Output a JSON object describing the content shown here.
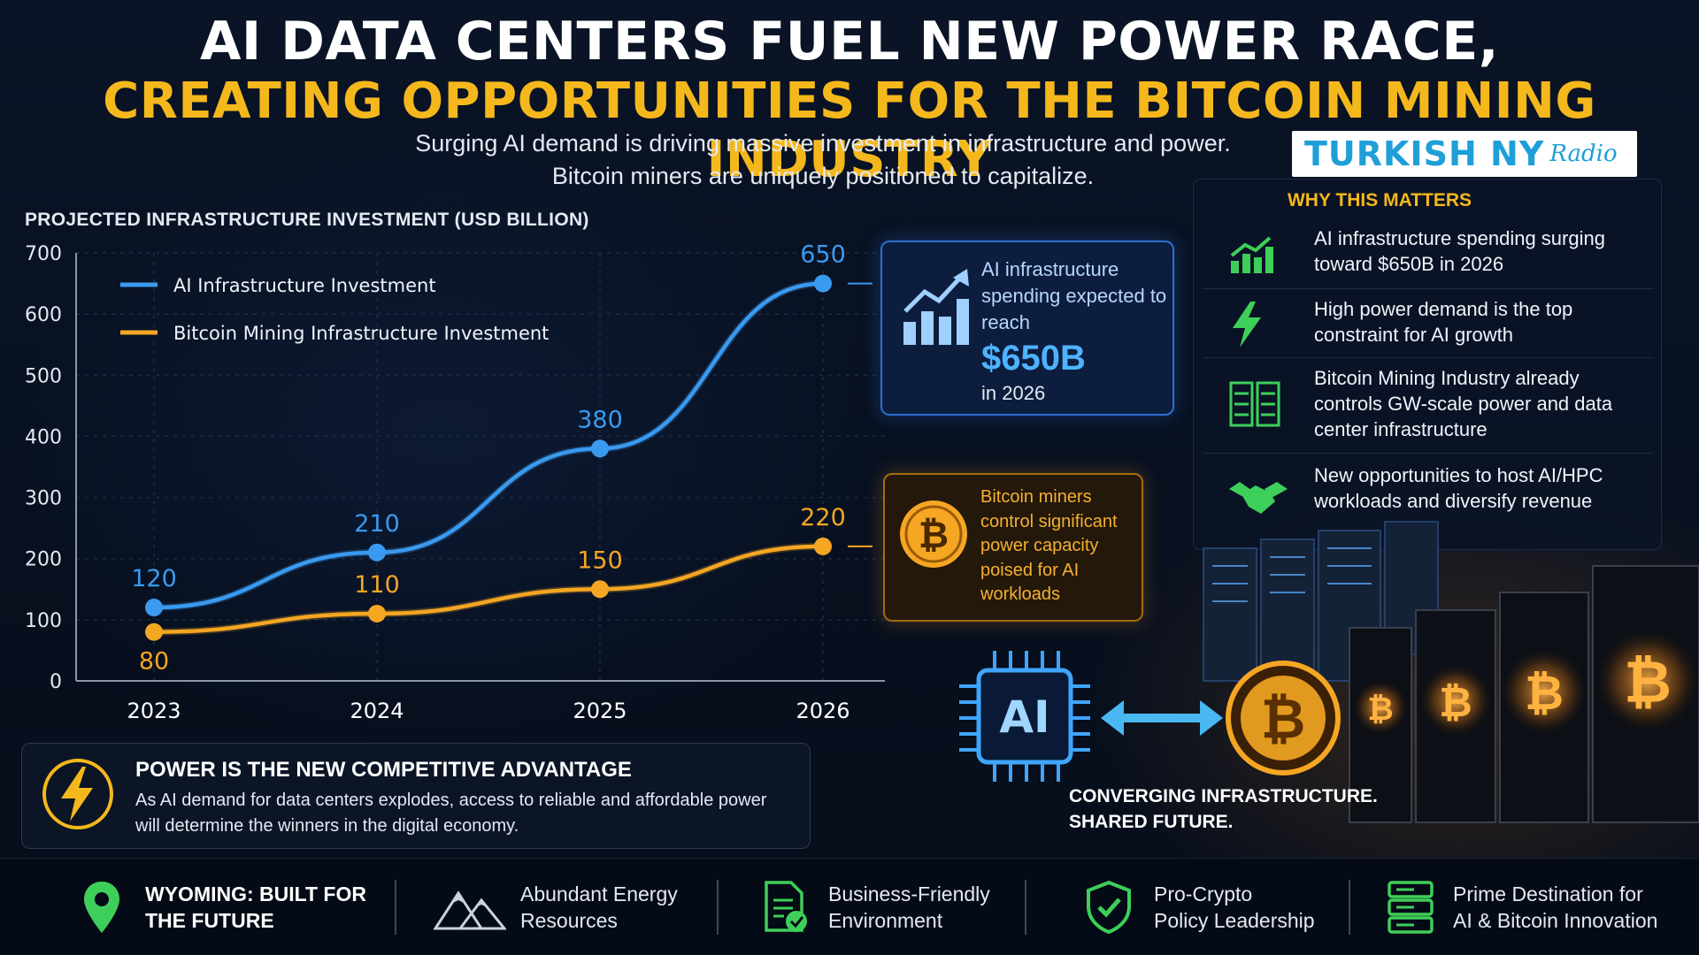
{
  "headline": {
    "line1": "AI DATA CENTERS FUEL NEW POWER RACE,",
    "line2": "CREATING OPPORTUNITIES FOR THE BITCOIN MINING INDUSTRY"
  },
  "subtitle": {
    "line1": "Surging AI demand is driving massive investment in infrastructure and power.",
    "line2": "Bitcoin miners are uniquely positioned to capitalize."
  },
  "brand": {
    "name": "TURKISH NY",
    "script": "Radio"
  },
  "chart_data": {
    "type": "line",
    "title": "PROJECTED INFRASTRUCTURE INVESTMENT (USD BILLION)",
    "x": [
      "2023",
      "2024",
      "2025",
      "2026"
    ],
    "ylim": [
      0,
      700
    ],
    "yticks": [
      0,
      100,
      200,
      300,
      400,
      500,
      600,
      700
    ],
    "grid": true,
    "legend_position": "top-left",
    "series": [
      {
        "name": "AI Infrastructure Investment",
        "color": "#3a9af0",
        "values": [
          120,
          210,
          380,
          650
        ],
        "labels": [
          "120",
          "210",
          "380",
          "650"
        ]
      },
      {
        "name": "Bitcoin Mining Infrastructure Investment",
        "color": "#f5a623",
        "values": [
          80,
          110,
          150,
          220
        ],
        "labels": [
          "80",
          "110",
          "150",
          "220"
        ]
      }
    ]
  },
  "callouts": {
    "ai": {
      "text": "AI infrastructure spending expected to reach",
      "value": "$650B",
      "suffix": "in 2026"
    },
    "btc": {
      "text": "Bitcoin miners control significant power capacity poised for AI workloads"
    }
  },
  "why": {
    "title": "WHY THIS MATTERS",
    "items": [
      {
        "icon": "growth-chart-icon",
        "text": "AI infrastructure spending surging toward $650B in 2026"
      },
      {
        "icon": "lightning-icon",
        "text": "High power demand is the top constraint for AI growth"
      },
      {
        "icon": "server-rack-icon",
        "text": "Bitcoin Mining Industry already controls GW-scale power and data center infrastructure"
      },
      {
        "icon": "handshake-icon",
        "text": "New opportunities to host AI/HPC workloads and diversify revenue"
      }
    ]
  },
  "converge": {
    "line1": "CONVERGING INFRASTRUCTURE.",
    "line2": "SHARED FUTURE.",
    "chip_label": "AI"
  },
  "power_box": {
    "title": "POWER IS THE NEW COMPETITIVE ADVANTAGE",
    "body": "As AI demand for data centers explodes, access to reliable and affordable power will determine the winners in the digital economy."
  },
  "footer": {
    "items": [
      {
        "icon": "map-pin-icon",
        "line1": "WYOMING: BUILT FOR",
        "line2": "THE FUTURE"
      },
      {
        "icon": "mountains-icon",
        "line1": "Abundant Energy",
        "line2": "Resources"
      },
      {
        "icon": "document-check-icon",
        "line1": "Business-Friendly",
        "line2": "Environment"
      },
      {
        "icon": "shield-check-icon",
        "line1": "Pro-Crypto",
        "line2": "Policy Leadership"
      },
      {
        "icon": "server-stack-icon",
        "line1": "Prime Destination for",
        "line2": "AI & Bitcoin Innovation"
      }
    ]
  },
  "colors": {
    "accent_gold": "#f5b81c",
    "ai_blue": "#3a9af0",
    "btc_orange": "#f5a623",
    "icon_green": "#3ecf5a"
  }
}
